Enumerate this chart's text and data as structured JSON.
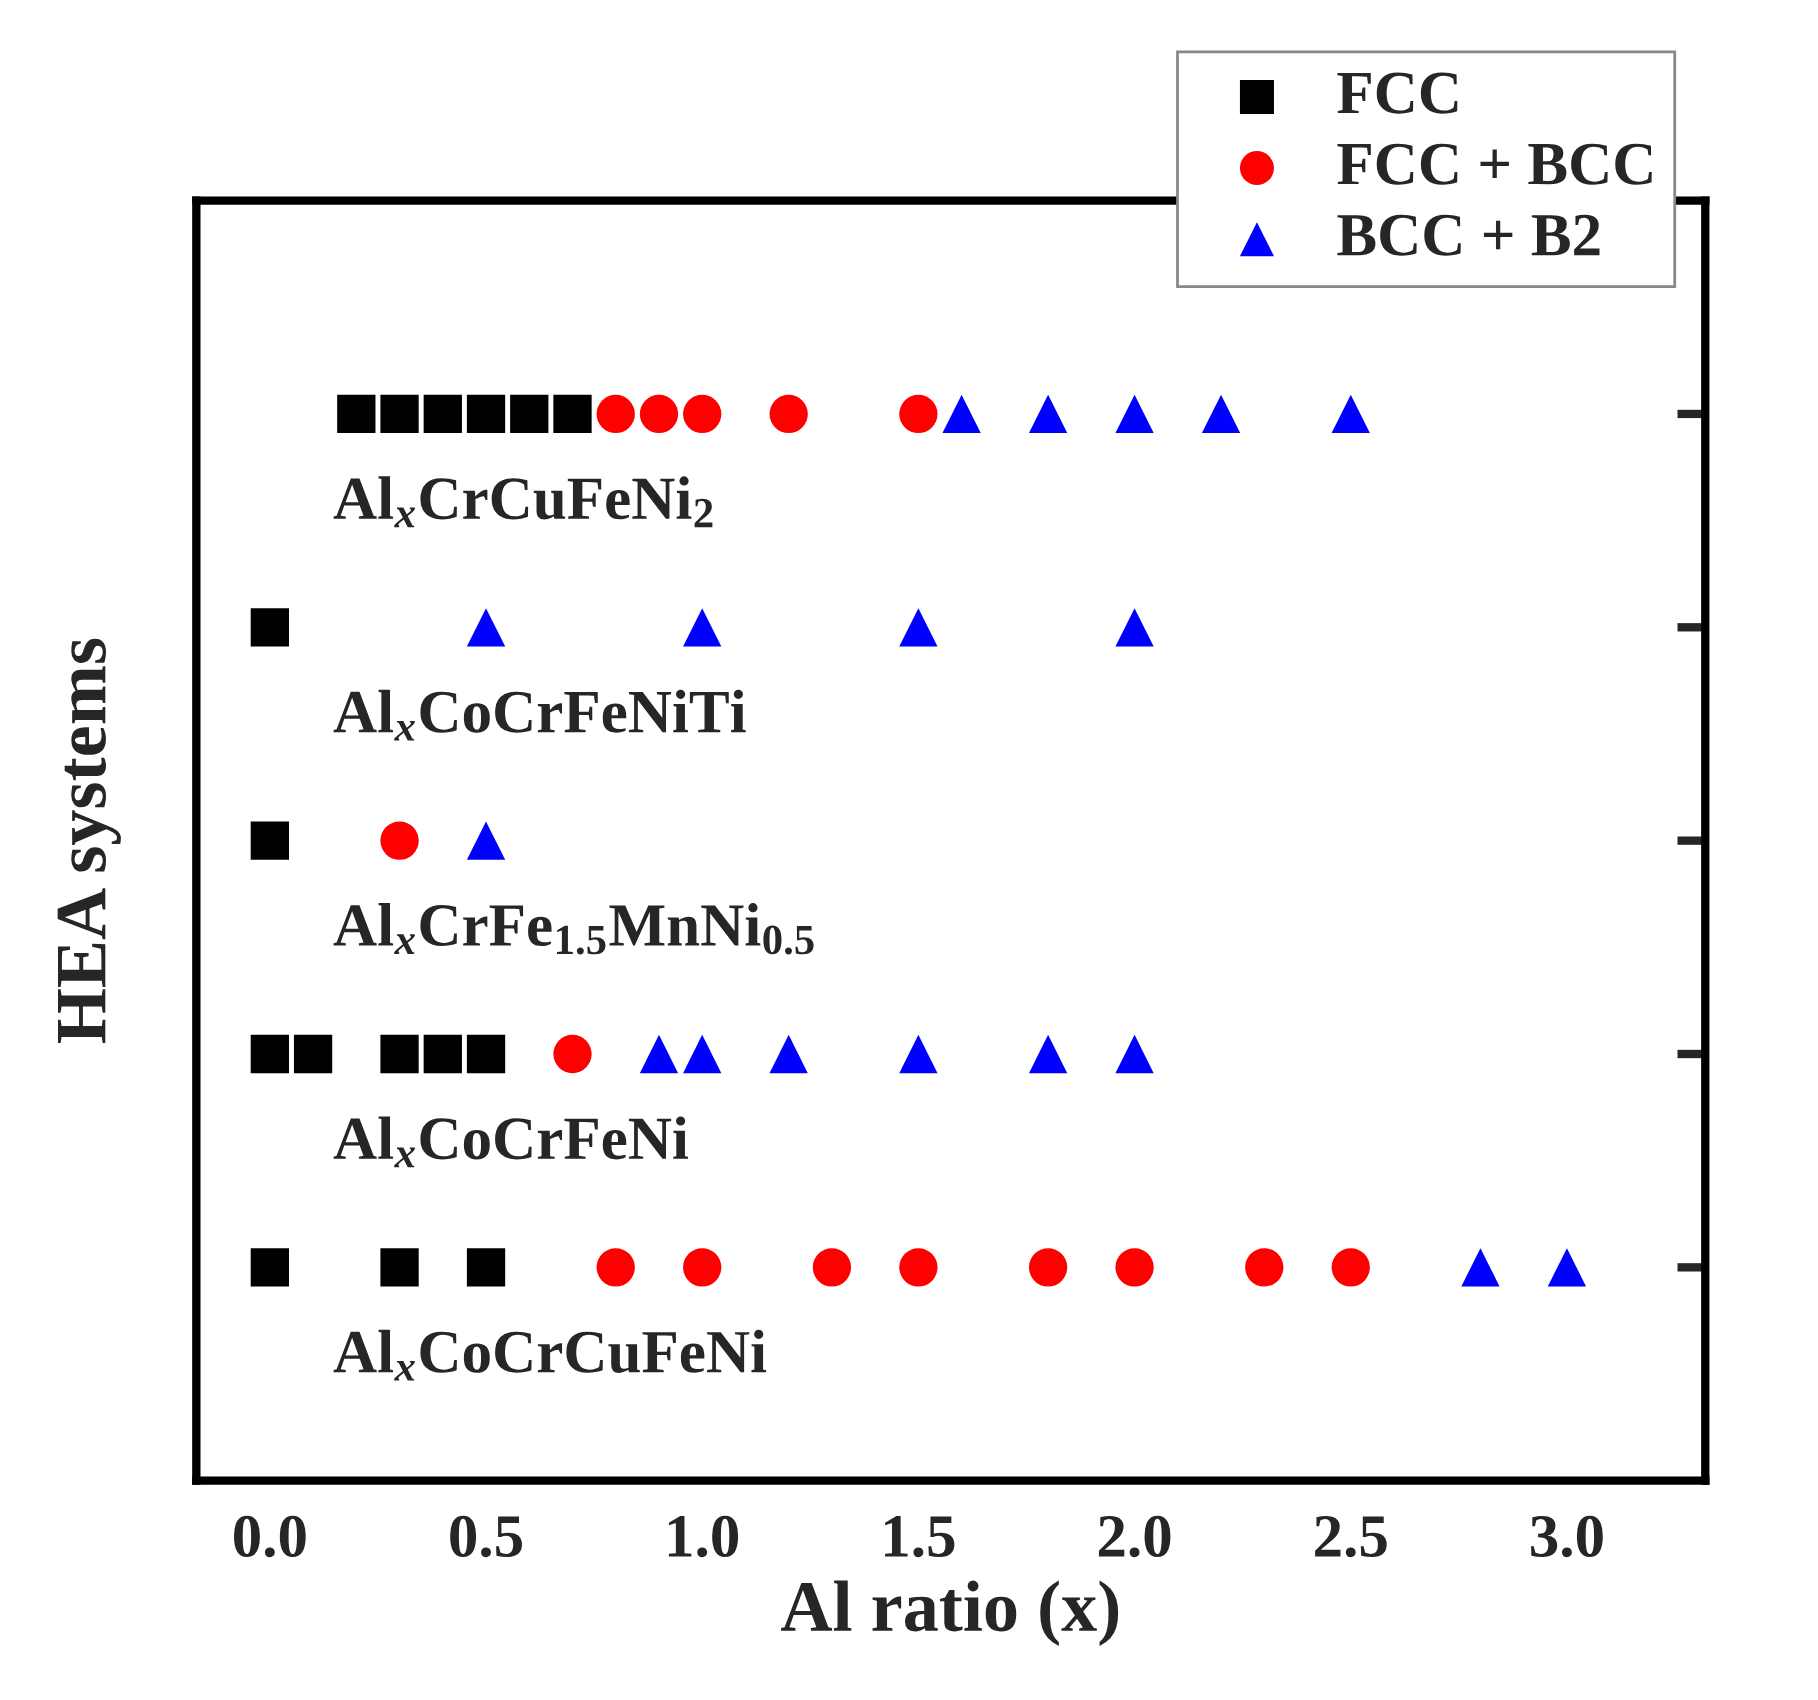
{
  "chart_data": {
    "type": "scatter",
    "orientation": "horizontal",
    "xlabel": "Al ratio (x)",
    "ylabel": "HEA systems",
    "legend": "top right",
    "grid": false,
    "xlim": [
      -0.17,
      3.32
    ],
    "xticks": [
      {
        "value": 0,
        "label": "0.0"
      },
      0.5,
      {
        "value": 1,
        "label": "1.0"
      },
      1.5,
      {
        "value": 2,
        "label": "2.0"
      },
      2.5,
      {
        "value": 3,
        "label": "3.0"
      }
    ],
    "categories": [
      "Al$_{x}$CrCuFeNi$_{2}$",
      "Al$_{x}$CoCrFeNiTi",
      "Al$_{x}$CrFe$_{1.5}$MnNi$_{0.5}$",
      "Al$_{x}$CoCrFeNi",
      "Al$_{x}$CoCrCuFeNi"
    ],
    "series": [
      {
        "name": "FCC",
        "color": "#000000",
        "marker": "square",
        "values": [
          0.2,
          0,
          0,
          0,
          0
        ]
      },
      {
        "color": "#000000",
        "marker": "square",
        "values": [
          0.3,
          null,
          null,
          0.1,
          0.3
        ]
      },
      {
        "color": "#000000",
        "marker": "square",
        "values": [
          0.4,
          null,
          null,
          0.3,
          0.5
        ]
      },
      {
        "color": "#000000",
        "marker": "square",
        "values": [
          0.5,
          null,
          null,
          0.4,
          null
        ]
      },
      {
        "color": "#000000",
        "marker": "square",
        "values": [
          0.6,
          null,
          null,
          0.5,
          null
        ]
      },
      {
        "color": "#000000",
        "marker": "square",
        "values": [
          0.7,
          null,
          null,
          null,
          null
        ]
      },
      {
        "name": "FCC + BCC",
        "color": "#ff0000",
        "marker": "circle",
        "values": [
          0.8,
          null,
          0.3,
          0.7,
          0.8
        ]
      },
      {
        "color": "#ff0000",
        "marker": "circle",
        "values": [
          0.9,
          null,
          null,
          null,
          1.0
        ]
      },
      {
        "color": "#ff0000",
        "marker": "circle",
        "values": [
          1.0,
          null,
          null,
          null,
          1.3
        ]
      },
      {
        "color": "#ff0000",
        "marker": "circle",
        "values": [
          1.2,
          null,
          null,
          null,
          1.5
        ]
      },
      {
        "color": "#ff0000",
        "marker": "circle",
        "values": [
          1.5,
          null,
          null,
          null,
          1.8
        ]
      },
      {
        "color": "#ff0000",
        "marker": "circle",
        "values": [
          null,
          null,
          null,
          null,
          2.0
        ]
      },
      {
        "color": "#ff0000",
        "marker": "circle",
        "values": [
          null,
          null,
          null,
          null,
          2.3
        ]
      },
      {
        "color": "#ff0000",
        "marker": "circle",
        "values": [
          null,
          null,
          null,
          null,
          2.5
        ]
      },
      {
        "name": "BCC + B2",
        "color": "#0000ff",
        "marker": "triangle",
        "values": [
          1.6,
          0.5,
          0.5,
          0.9,
          2.8
        ]
      },
      {
        "color": "#0000ff",
        "marker": "triangle",
        "values": [
          1.8,
          1.0,
          null,
          1.0,
          3.0
        ]
      },
      {
        "color": "#0000ff",
        "marker": "triangle",
        "values": [
          2.0,
          1.5,
          null,
          1.2,
          null
        ]
      },
      {
        "color": "#0000ff",
        "marker": "triangle",
        "values": [
          2.2,
          2.0,
          null,
          1.5,
          null
        ]
      },
      {
        "color": "#0000ff",
        "marker": "triangle",
        "values": [
          2.5,
          null,
          null,
          1.8,
          null
        ]
      },
      {
        "color": "#0000ff",
        "marker": "triangle",
        "values": [
          null,
          null,
          null,
          2.0,
          null
        ]
      }
    ]
  }
}
